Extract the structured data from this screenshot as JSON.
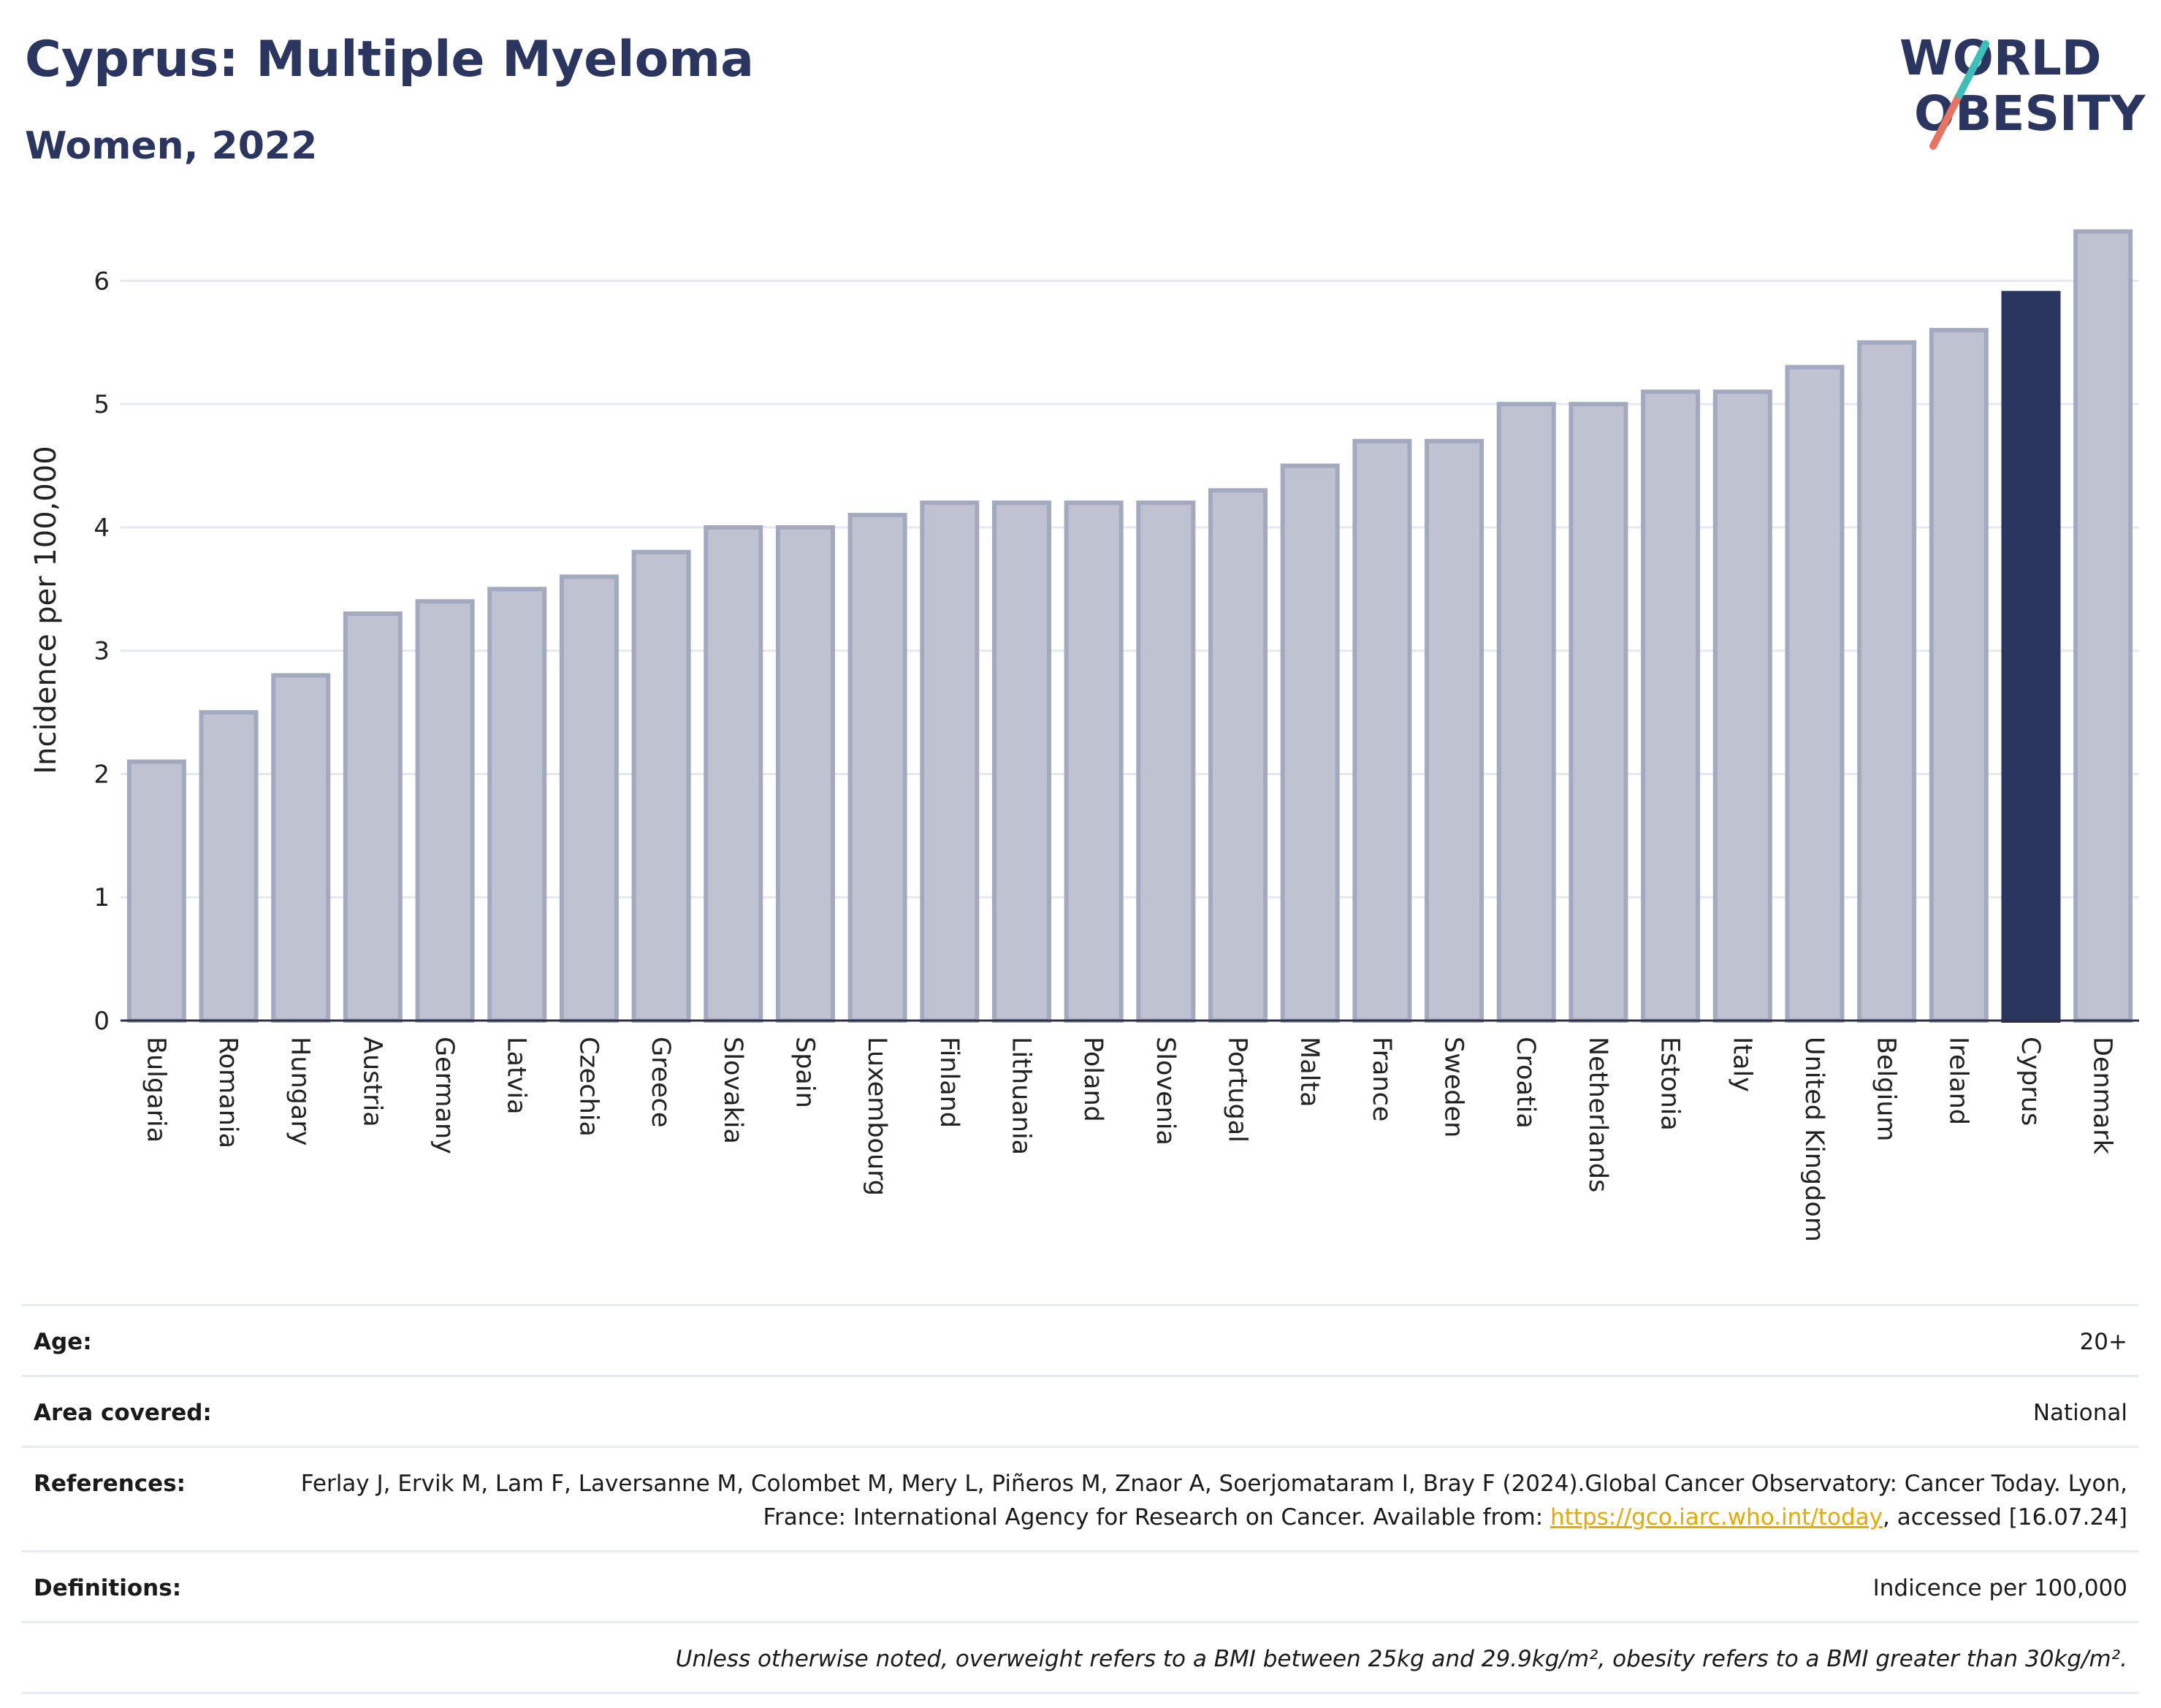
{
  "header": {
    "title": "Cyprus: Multiple Myeloma",
    "subtitle": "Women, 2022",
    "logo_line1": "WORLD",
    "logo_line2": "OBESITY"
  },
  "colors": {
    "highlight": "#2a3560",
    "bar": "#bfc3d1",
    "bar_border": "#a3a9bf",
    "title": "#2a3560",
    "logo_teal": "#3bbfb8",
    "logo_coral": "#e8735f"
  },
  "chart_data": {
    "type": "bar",
    "title": "Cyprus: Multiple Myeloma",
    "subtitle": "Women, 2022",
    "ylabel": "Incidence per 100,000",
    "xlabel": "",
    "ylim": [
      0,
      6.5
    ],
    "yticks": [
      0,
      1,
      2,
      3,
      4,
      5,
      6
    ],
    "grid": true,
    "highlight": "Cyprus",
    "categories": [
      "Bulgaria",
      "Romania",
      "Hungary",
      "Austria",
      "Germany",
      "Latvia",
      "Czechia",
      "Greece",
      "Slovakia",
      "Spain",
      "Luxembourg",
      "Finland",
      "Lithuania",
      "Poland",
      "Slovenia",
      "Portugal",
      "Malta",
      "France",
      "Sweden",
      "Croatia",
      "Netherlands",
      "Estonia",
      "Italy",
      "United Kingdom",
      "Belgium",
      "Ireland",
      "Cyprus",
      "Denmark"
    ],
    "values": [
      2.1,
      2.5,
      2.8,
      3.3,
      3.4,
      3.5,
      3.6,
      3.8,
      4.0,
      4.0,
      4.1,
      4.2,
      4.2,
      4.2,
      4.2,
      4.3,
      4.5,
      4.7,
      4.7,
      5.0,
      5.0,
      5.1,
      5.1,
      5.3,
      5.5,
      5.6,
      5.9,
      6.4
    ]
  },
  "info": {
    "age_label": "Age:",
    "age_value": "20+",
    "area_label": "Area covered:",
    "area_value": "National",
    "references_label": "References:",
    "references_text1": "Ferlay J, Ervik M, Lam F, Laversanne M, Colombet M, Mery L, Piñeros M, Znaor A, Soerjomataram I, Bray F (2024).Global Cancer Observatory: Cancer Today. Lyon, France: International Agency for Research on Cancer. Available from: ",
    "references_link": "https://gco.iarc.who.int/today",
    "references_text2": ", accessed [16.07.24]",
    "definitions_label": "Definitions:",
    "definitions_value": "Indicence per 100,000",
    "note": "Unless otherwise noted, overweight refers to a BMI between 25kg and 29.9kg/m², obesity refers to a BMI greater than 30kg/m²."
  }
}
